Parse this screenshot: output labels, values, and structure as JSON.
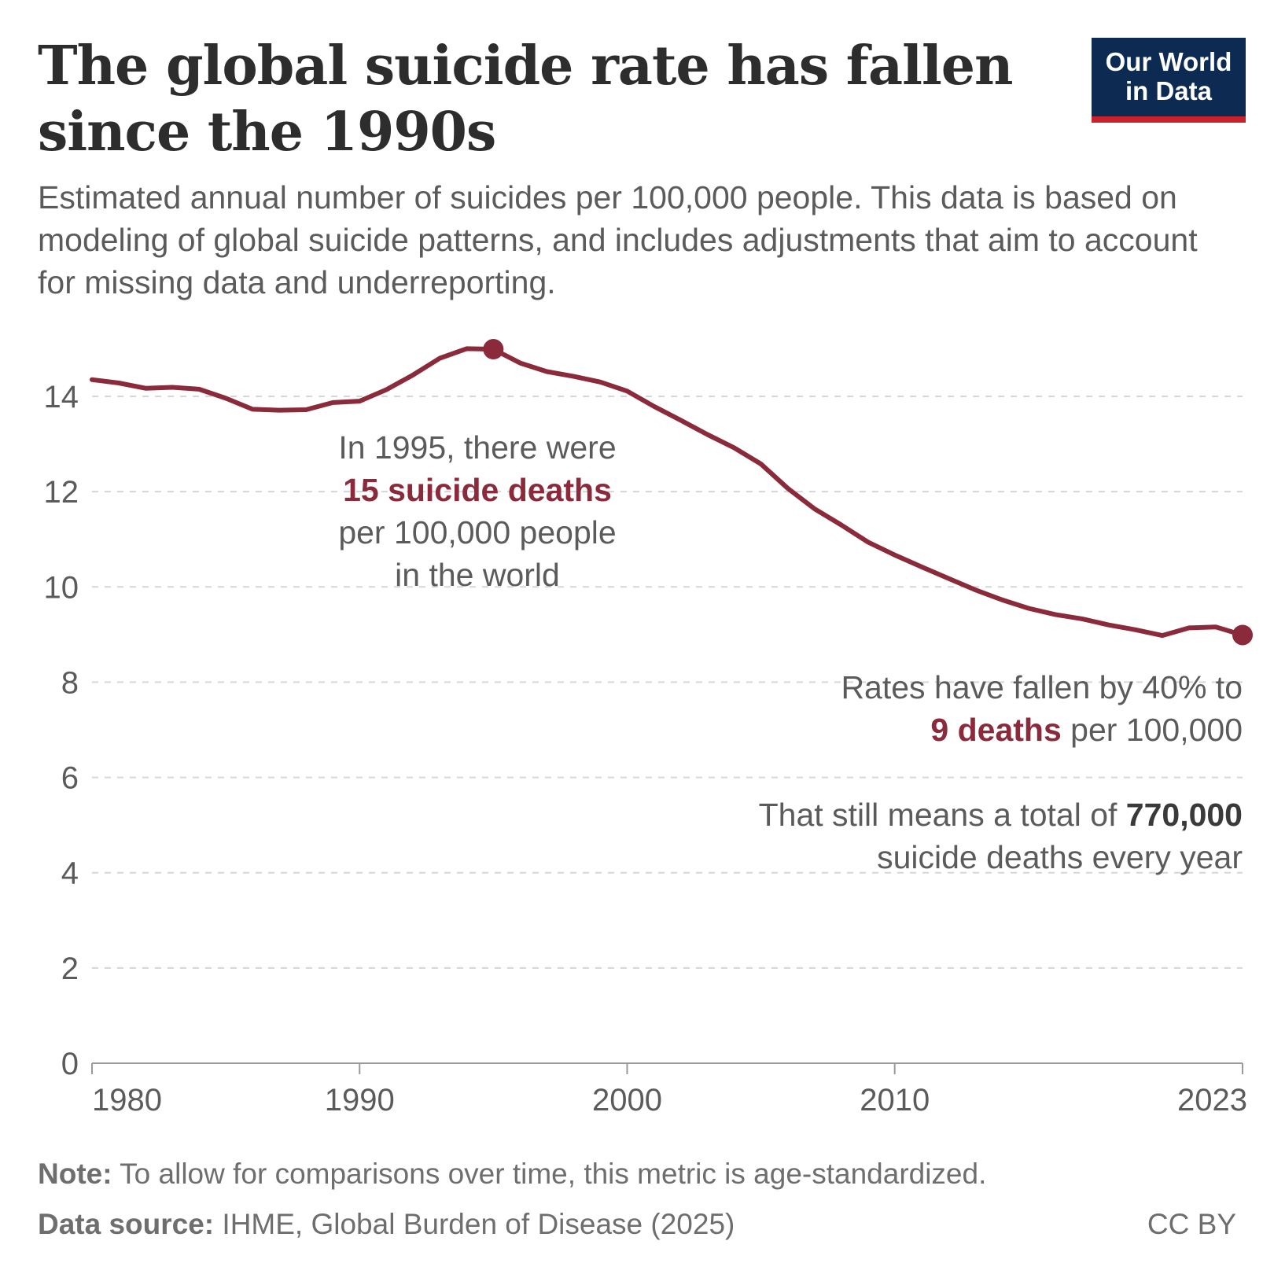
{
  "header": {
    "title": "The global suicide rate has fallen since the 1990s",
    "subtitle": "Estimated annual number of suicides per 100,000 people. This data is based on modeling of global suicide patterns, and includes adjustments that aim to account for missing data and underreporting."
  },
  "logo": {
    "line1": "Our World",
    "line2": "in Data",
    "bg_color": "#0d2a52",
    "accent_color": "#c8232c"
  },
  "chart_data": {
    "type": "line",
    "title": "The global suicide rate has fallen since the 1990s",
    "xlabel": "",
    "ylabel": "",
    "xlim": [
      1980,
      2023
    ],
    "ylim": [
      0,
      15
    ],
    "x_ticks": [
      1980,
      1990,
      2000,
      2010,
      2023
    ],
    "y_ticks": [
      0,
      2,
      4,
      6,
      8,
      10,
      12,
      14
    ],
    "grid": "horizontal dashed",
    "line_color": "#8b2a3a",
    "series": [
      {
        "x": [
          1980,
          1981,
          1982,
          1983,
          1984,
          1985,
          1986,
          1987,
          1988,
          1989,
          1990,
          1991,
          1992,
          1993,
          1994,
          1995,
          1996,
          1997,
          1998,
          1999,
          2000,
          2001,
          2002,
          2003,
          2004,
          2005,
          2006,
          2007,
          2008,
          2009,
          2010,
          2011,
          2012,
          2013,
          2014,
          2015,
          2016,
          2017,
          2018,
          2019,
          2020,
          2021,
          2022,
          2023
        ],
        "values": [
          14.35,
          14.28,
          14.17,
          14.19,
          14.15,
          13.96,
          13.73,
          13.71,
          13.72,
          13.87,
          13.9,
          14.14,
          14.45,
          14.8,
          15.0,
          14.99,
          14.7,
          14.52,
          14.42,
          14.3,
          14.11,
          13.79,
          13.5,
          13.2,
          12.92,
          12.58,
          12.07,
          11.64,
          11.3,
          10.94,
          10.67,
          10.42,
          10.18,
          9.94,
          9.73,
          9.55,
          9.42,
          9.33,
          9.2,
          9.1,
          8.98,
          9.14,
          9.16,
          8.99
        ]
      }
    ],
    "highlight_points": [
      {
        "x": 1995,
        "y": 14.99
      },
      {
        "x": 2023,
        "y": 8.99
      }
    ],
    "annotations": {
      "peak": {
        "line1": "In 1995, there were",
        "line2": "15 suicide deaths",
        "line3": "per 100,000 people",
        "line4": "in the world"
      },
      "latest": {
        "line1": "Rates have fallen by 40% to",
        "line2_bold": "9 deaths",
        "line2_rest": " per 100,000"
      },
      "total": {
        "line1_text": "That still means a total of ",
        "line1_bold": "770,000",
        "line2": "suicide deaths every year"
      }
    }
  },
  "footer": {
    "note_label": "Note:",
    "note_text": " To allow for comparisons over time, this metric is age-standardized.",
    "source_label": "Data source:",
    "source_text": " IHME, Global Burden of Disease (2025)",
    "license": "CC BY"
  }
}
